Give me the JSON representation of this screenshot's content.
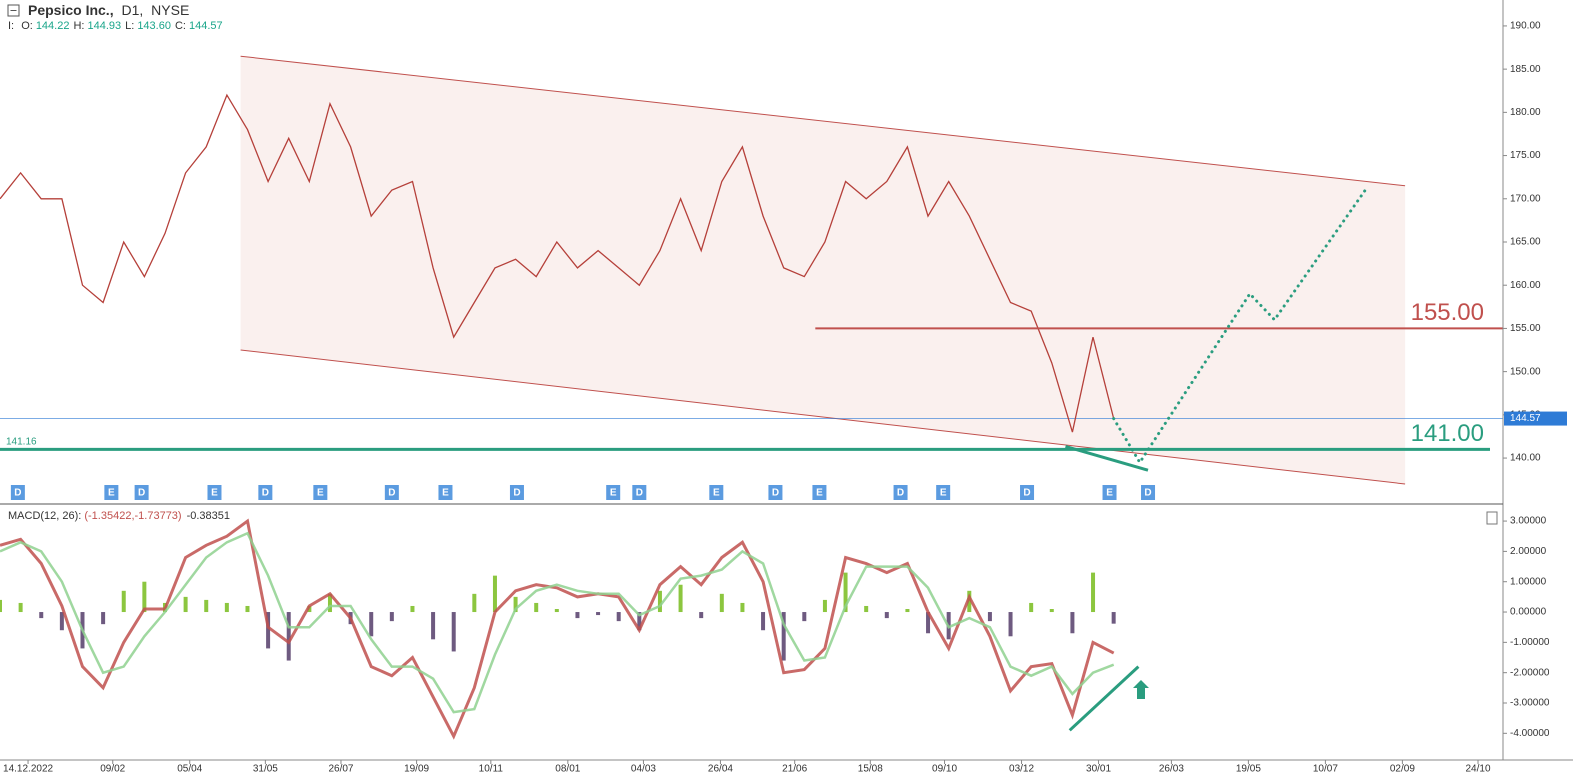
{
  "header": {
    "symbol": "Pepsico Inc.,",
    "interval": "D1,",
    "exchange": "NYSE",
    "prefix": "I:",
    "ohlc": [
      {
        "key": "O:",
        "value": "144.22"
      },
      {
        "key": "H:",
        "value": "144.93"
      },
      {
        "key": "L:",
        "value": "143.60"
      },
      {
        "key": "C:",
        "value": "144.57"
      }
    ]
  },
  "chart_data": [
    {
      "type": "line",
      "x": [
        -20,
        -5,
        10,
        25,
        40,
        55,
        70,
        85,
        100,
        115,
        130,
        145,
        160,
        175,
        190,
        205,
        220,
        235,
        250,
        265,
        280,
        295,
        310,
        325,
        340,
        355,
        370,
        385,
        400,
        415,
        430,
        445,
        460,
        475,
        490,
        505,
        520,
        535,
        550,
        565,
        580,
        595,
        610,
        625,
        640,
        655,
        670,
        685,
        700,
        715,
        730,
        745,
        760,
        775,
        790
      ],
      "series": [
        {
          "color": "#b5403a",
          "values": [
            170,
            173,
            170,
            170,
            160,
            158,
            165,
            161,
            166,
            173,
            176,
            182,
            178,
            172,
            177,
            172,
            181,
            176,
            168,
            171,
            172,
            162,
            154,
            158,
            162,
            163,
            161,
            165,
            162,
            164,
            162,
            160,
            164,
            170,
            164,
            172,
            176,
            168,
            162,
            161,
            165,
            172,
            170,
            172,
            176,
            168,
            172,
            168,
            163,
            158,
            157,
            151,
            143,
            154,
            144.57
          ]
        }
      ],
      "forecast": {
        "color": "#2a9d7f",
        "x": [
          790,
          809,
          889,
          907,
          973
        ],
        "values": [
          144.57,
          139.5,
          159,
          156,
          171
        ]
      },
      "xlim": [
        -20,
        1071
      ],
      "ylim": [
        134.8,
        193.0
      ],
      "yticks": [
        {
          "value": 140,
          "label": "140.00"
        },
        {
          "value": 145,
          "label": "145.00"
        },
        {
          "value": 150,
          "label": "150.00"
        },
        {
          "value": 155,
          "label": "155.00"
        },
        {
          "value": 160,
          "label": "160.00"
        },
        {
          "value": 165,
          "label": "165.00"
        },
        {
          "value": 170,
          "label": "170.00"
        },
        {
          "value": 175,
          "label": "175.00"
        },
        {
          "value": 180,
          "label": "180.00"
        },
        {
          "value": 185,
          "label": "185.00"
        },
        {
          "value": 190,
          "label": "190.00"
        }
      ],
      "channel": {
        "color": "#c0504d",
        "fill": "#f9ecea",
        "upper": {
          "x": [
            155,
            1002
          ],
          "values": [
            186.5,
            171.5
          ]
        },
        "lower": {
          "x": [
            155,
            1002
          ],
          "values": [
            152.5,
            137
          ]
        }
      },
      "levels": [
        {
          "value": 155,
          "label": "155.00",
          "x_start": 573,
          "color": "#c0504d"
        },
        {
          "value": 141,
          "label": "141.00",
          "color": "#2a9d7f"
        }
      ],
      "reference_label": {
        "value": 141.16,
        "label": "141.16"
      },
      "last_price": {
        "value": 144.57,
        "label": "144.57",
        "color": "#2e7bd6"
      },
      "trendline": {
        "x": [
          755,
          815
        ],
        "values": [
          141.35,
          138.6
        ],
        "color": "#2a9d7f"
      },
      "events": {
        "x": [
          -7,
          61,
          83,
          136,
          173,
          213,
          265,
          304,
          356,
          426,
          445,
          501,
          544,
          576,
          635,
          666,
          727,
          787,
          815
        ],
        "labels": [
          "D",
          "E",
          "D",
          "E",
          "D",
          "E",
          "D",
          "E",
          "D",
          "E",
          "D",
          "E",
          "D",
          "E",
          "D",
          "E",
          "D",
          "E",
          "D"
        ],
        "color": "#5b9be0"
      }
    },
    {
      "type": "macd",
      "title": "MACD(12, 26):",
      "legend_values": "(-1.35422,-1.73773)",
      "hist_label": "-0.38351",
      "x": [
        -20,
        -5,
        10,
        25,
        40,
        55,
        70,
        85,
        100,
        115,
        130,
        145,
        160,
        175,
        190,
        205,
        220,
        235,
        250,
        265,
        280,
        295,
        310,
        325,
        340,
        355,
        370,
        385,
        400,
        415,
        430,
        445,
        460,
        475,
        490,
        505,
        520,
        535,
        550,
        565,
        580,
        595,
        610,
        625,
        640,
        655,
        670,
        685,
        700,
        715,
        730,
        745,
        760,
        775,
        790
      ],
      "series": [
        {
          "color": "#c0504d",
          "values": [
            2.2,
            2.4,
            1.6,
            0.2,
            -1.8,
            -2.5,
            -1.0,
            0.1,
            0.1,
            1.8,
            2.2,
            2.5,
            3.0,
            -0.5,
            -1.0,
            0.2,
            0.6,
            -0.2,
            -1.8,
            -2.1,
            -1.5,
            -2.8,
            -4.1,
            -2.5,
            0.0,
            0.7,
            0.9,
            0.8,
            0.5,
            0.6,
            0.5,
            -0.6,
            0.9,
            1.5,
            0.9,
            1.8,
            2.3,
            1.0,
            -2.0,
            -1.9,
            -1.2,
            1.8,
            1.6,
            1.3,
            1.6,
            0.0,
            -1.2,
            0.5,
            -0.8,
            -2.6,
            -1.8,
            -1.7,
            -3.4,
            -1.0,
            -1.35422
          ]
        },
        {
          "color": "#8fd18f",
          "values": [
            2.0,
            2.3,
            2.0,
            1.0,
            -0.6,
            -2.0,
            -1.8,
            -0.8,
            0.0,
            0.9,
            1.8,
            2.3,
            2.6,
            1.2,
            -0.5,
            -0.5,
            0.2,
            0.2,
            -0.9,
            -1.8,
            -1.8,
            -2.2,
            -3.3,
            -3.2,
            -1.4,
            0.1,
            0.7,
            0.9,
            0.7,
            0.6,
            0.6,
            -0.1,
            0.2,
            1.1,
            1.2,
            1.4,
            2.0,
            1.6,
            -0.4,
            -1.6,
            -1.5,
            0.2,
            1.5,
            1.5,
            1.5,
            0.8,
            -0.5,
            -0.2,
            -0.5,
            -1.8,
            -2.1,
            -1.8,
            -2.7,
            -2.0,
            -1.73773
          ]
        }
      ],
      "histogram": {
        "pos_color": "#8cc63f",
        "neg_color": "#6e5a80",
        "values": [
          0.4,
          0.3,
          -0.2,
          -0.6,
          -1.2,
          -0.4,
          0.7,
          1.0,
          0.3,
          0.5,
          0.4,
          0.3,
          0.2,
          -1.2,
          -1.6,
          0.2,
          0.6,
          -0.4,
          -0.8,
          -0.3,
          0.2,
          -0.9,
          -1.3,
          0.6,
          1.2,
          0.5,
          0.3,
          0.1,
          -0.2,
          -0.1,
          -0.3,
          -0.6,
          0.7,
          0.9,
          -0.2,
          0.6,
          0.3,
          -0.6,
          -1.6,
          -0.3,
          0.4,
          1.3,
          0.2,
          -0.2,
          0.1,
          -0.7,
          -0.9,
          0.7,
          -0.3,
          -0.8,
          0.3,
          0.1,
          -0.7,
          1.3,
          -0.38351
        ]
      },
      "xlim": [
        -20,
        1071
      ],
      "ylim": [
        -4.88,
        3.53
      ],
      "yticks": [
        {
          "value": 3,
          "label": "3.00000"
        },
        {
          "value": 2,
          "label": "2.00000"
        },
        {
          "value": 1,
          "label": "1.00000"
        },
        {
          "value": 0,
          "label": "0.00000"
        },
        {
          "value": -1,
          "label": "-1.00000"
        },
        {
          "value": -2,
          "label": "-2.00000"
        },
        {
          "value": -3,
          "label": "-3.00000"
        },
        {
          "value": -4,
          "label": "-4.00000"
        }
      ],
      "xticks": [
        {
          "value": 0.4,
          "label": "14.12.2022"
        },
        {
          "value": 62,
          "label": "09/02"
        },
        {
          "value": 118,
          "label": "05/04"
        },
        {
          "value": 173,
          "label": "31/05"
        },
        {
          "value": 228,
          "label": "26/07"
        },
        {
          "value": 283,
          "label": "19/09"
        },
        {
          "value": 337,
          "label": "10/11"
        },
        {
          "value": 393,
          "label": "08/01"
        },
        {
          "value": 448,
          "label": "04/03"
        },
        {
          "value": 504,
          "label": "26/04"
        },
        {
          "value": 558,
          "label": "21/06"
        },
        {
          "value": 613,
          "label": "15/08"
        },
        {
          "value": 667,
          "label": "09/10"
        },
        {
          "value": 723,
          "label": "03/12"
        },
        {
          "value": 779,
          "label": "30/01"
        },
        {
          "value": 832,
          "label": "26/03"
        },
        {
          "value": 888,
          "label": "19/05"
        },
        {
          "value": 944,
          "label": "10/07"
        },
        {
          "value": 1000,
          "label": "02/09"
        },
        {
          "value": 1055,
          "label": "24/10"
        }
      ],
      "trendline": {
        "x": [
          758,
          808
        ],
        "values": [
          -3.9,
          -1.8
        ],
        "color": "#2a9d7f"
      }
    }
  ]
}
